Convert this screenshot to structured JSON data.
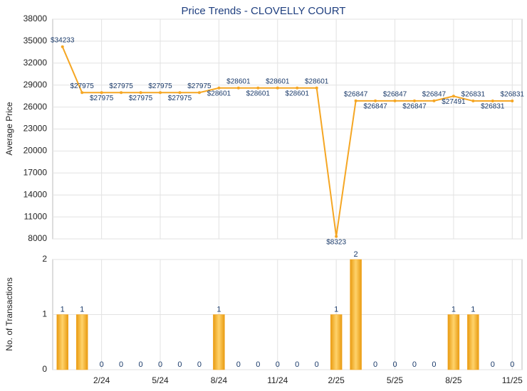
{
  "chart_data": [
    {
      "type": "line",
      "title": "Price Trends - CLOVELLY COURT",
      "ylabel": "Average Price",
      "color": "#f5a623",
      "values": [
        34233,
        27975,
        27975,
        27975,
        27975,
        27975,
        27975,
        27975,
        28601,
        28601,
        28601,
        28601,
        28601,
        28601,
        8323,
        26847,
        26847,
        26847,
        26847,
        26847,
        27491,
        26831,
        26831,
        26831
      ],
      "value_labels": [
        "$34233",
        "$27975",
        "$27975",
        "$27975",
        "$27975",
        "$27975",
        "$27975",
        "$27975",
        "$28601",
        "$28601",
        "$28601",
        "$28601",
        "$28601",
        "$28601",
        "$8323",
        "$26847",
        "$26847",
        "$26847",
        "$26847",
        "$26847",
        "$27491",
        "$26831",
        "$26831",
        "$26831"
      ],
      "ylim": [
        8000,
        38000
      ],
      "yticks": [
        8000,
        11000,
        14000,
        17000,
        20000,
        23000,
        26000,
        29000,
        32000,
        35000,
        38000
      ],
      "grid": true
    },
    {
      "type": "bar",
      "ylabel": "No. of Transactions",
      "color": "#f5a623",
      "categories": [
        null,
        null,
        "2/24",
        null,
        null,
        "5/24",
        null,
        null,
        "8/24",
        null,
        null,
        "11/24",
        null,
        null,
        "2/25",
        null,
        null,
        "5/25",
        null,
        null,
        "8/25",
        null,
        null,
        "11/25"
      ],
      "values": [
        1,
        1,
        0,
        0,
        0,
        0,
        0,
        0,
        1,
        0,
        0,
        0,
        0,
        0,
        1,
        2,
        0,
        0,
        0,
        0,
        1,
        1,
        0,
        0
      ],
      "ylim": [
        0,
        2
      ],
      "yticks": [
        0,
        1,
        2
      ],
      "grid": true
    }
  ]
}
